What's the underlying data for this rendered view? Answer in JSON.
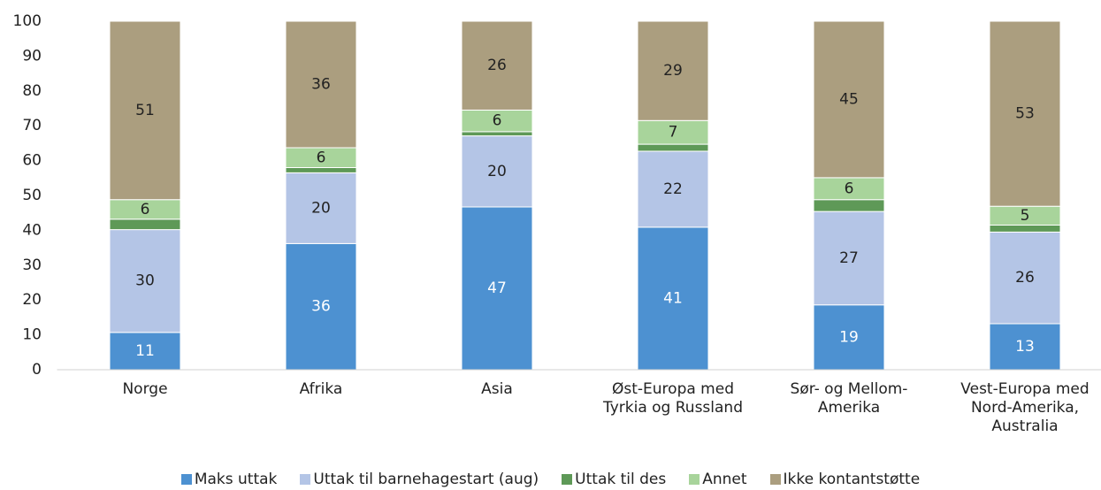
{
  "chart_data": {
    "type": "stacked-bar",
    "categories": [
      "Norge",
      "Afrika",
      "Asia",
      "Øst-Europa med Tyrkia og Russland",
      "Sør- og Mellom-Amerika",
      "Vest-Europa med Nord-Amerika, Australia"
    ],
    "series": [
      {
        "name": "Maks uttak",
        "color": "#4d91d1",
        "values": [
          10.7,
          36.2,
          46.7,
          40.9,
          18.6,
          13.2
        ],
        "value_labels": [
          "11",
          "36",
          "47",
          "41",
          "19",
          "13"
        ]
      },
      {
        "name": "Uttak til barnehagestart (aug)",
        "color": "#b4c5e6",
        "values": [
          29.5,
          20.3,
          20.4,
          21.8,
          26.8,
          26.3
        ],
        "value_labels": [
          "30",
          "20",
          "20",
          "22",
          "27",
          "26"
        ]
      },
      {
        "name": "Uttak til des",
        "color": "#5e9957",
        "values": [
          3.0,
          1.5,
          1.2,
          2.0,
          3.4,
          2.0
        ]
      },
      {
        "name": "Annet",
        "color": "#a8d49b",
        "values": [
          5.6,
          5.7,
          6.2,
          6.8,
          6.3,
          5.4
        ],
        "value_labels": [
          "6",
          "6",
          "6",
          "7",
          "6",
          "5"
        ]
      },
      {
        "name": "Ikke kontantstøtte",
        "color": "#ab9e7f",
        "values": [
          51.2,
          36.3,
          25.5,
          28.5,
          44.9,
          53.1
        ],
        "value_labels": [
          "51",
          "36",
          "26",
          "29",
          "45",
          "53"
        ]
      }
    ],
    "ylim": [
      0,
      100
    ],
    "yticks": [
      0,
      10,
      20,
      30,
      40,
      50,
      60,
      70,
      80,
      90,
      100
    ],
    "grid": false,
    "legend": "bottom"
  }
}
